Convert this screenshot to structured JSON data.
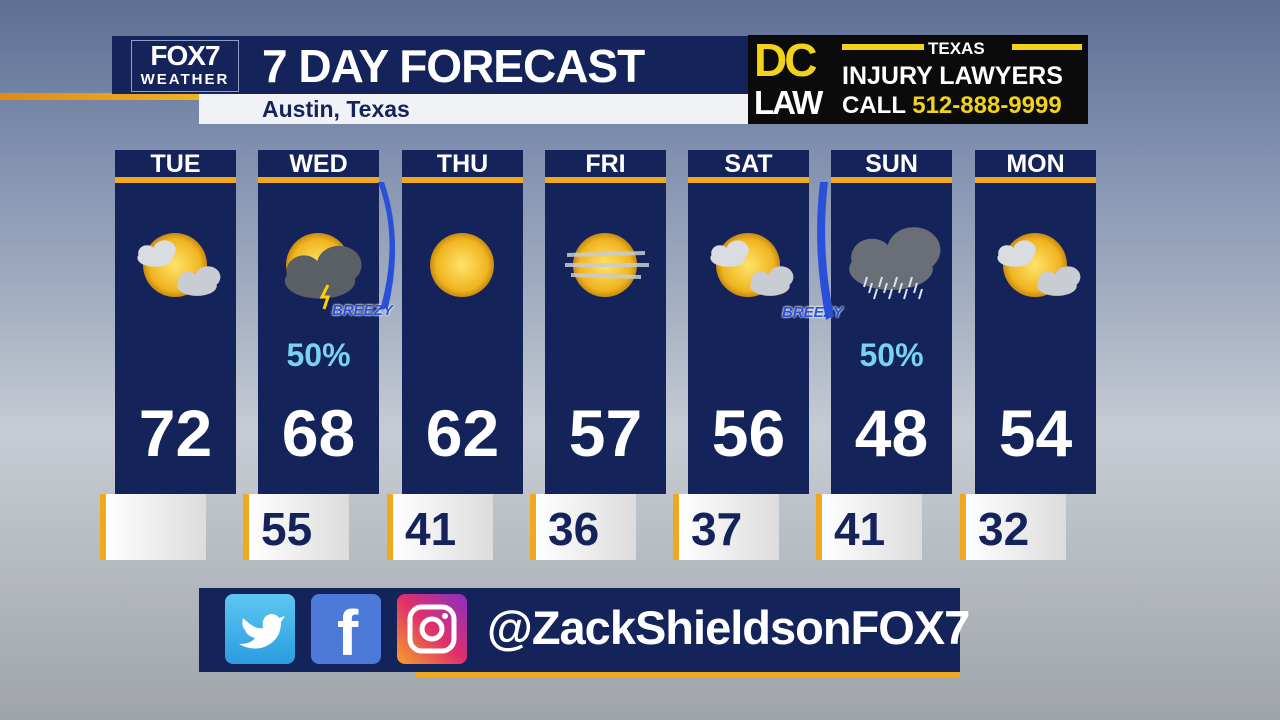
{
  "header": {
    "logo_top": "FOX7",
    "logo_bottom": "WEATHER",
    "title": "7 DAY FORECAST",
    "location": "Austin, Texas"
  },
  "ad": {
    "brand_top": "DC",
    "brand_bottom": "LAW",
    "state": "TEXAS",
    "line1": "INJURY LAWYERS",
    "call": "CALL",
    "phone": "512-888-9999"
  },
  "days": [
    {
      "name": "TUE",
      "high": "72",
      "low": "",
      "pop": "",
      "icon": "partly-sunny-icon"
    },
    {
      "name": "WED",
      "high": "68",
      "low": "55",
      "pop": "50%",
      "icon": "sun-thunderstorm-icon"
    },
    {
      "name": "THU",
      "high": "62",
      "low": "41",
      "pop": "",
      "icon": "sunny-icon"
    },
    {
      "name": "FRI",
      "high": "57",
      "low": "36",
      "pop": "",
      "icon": "hazy-sun-icon"
    },
    {
      "name": "SAT",
      "high": "56",
      "low": "37",
      "pop": "",
      "icon": "partly-sunny-icon"
    },
    {
      "name": "SUN",
      "high": "48",
      "low": "41",
      "pop": "50%",
      "icon": "rain-cloud-icon"
    },
    {
      "name": "MON",
      "high": "54",
      "low": "32",
      "pop": "",
      "icon": "partly-sunny-icon"
    }
  ],
  "breezy": [
    "BREEZY",
    "BREEZY"
  ],
  "social": {
    "handle": "@ZackShieldsonFOX7",
    "icons": [
      "twitter-icon",
      "facebook-icon",
      "instagram-icon"
    ]
  },
  "colors": {
    "navy": "#14245a",
    "accent": "#f0a81c",
    "pop": "#7ad3ee",
    "ad_yellow": "#f2d21b"
  }
}
